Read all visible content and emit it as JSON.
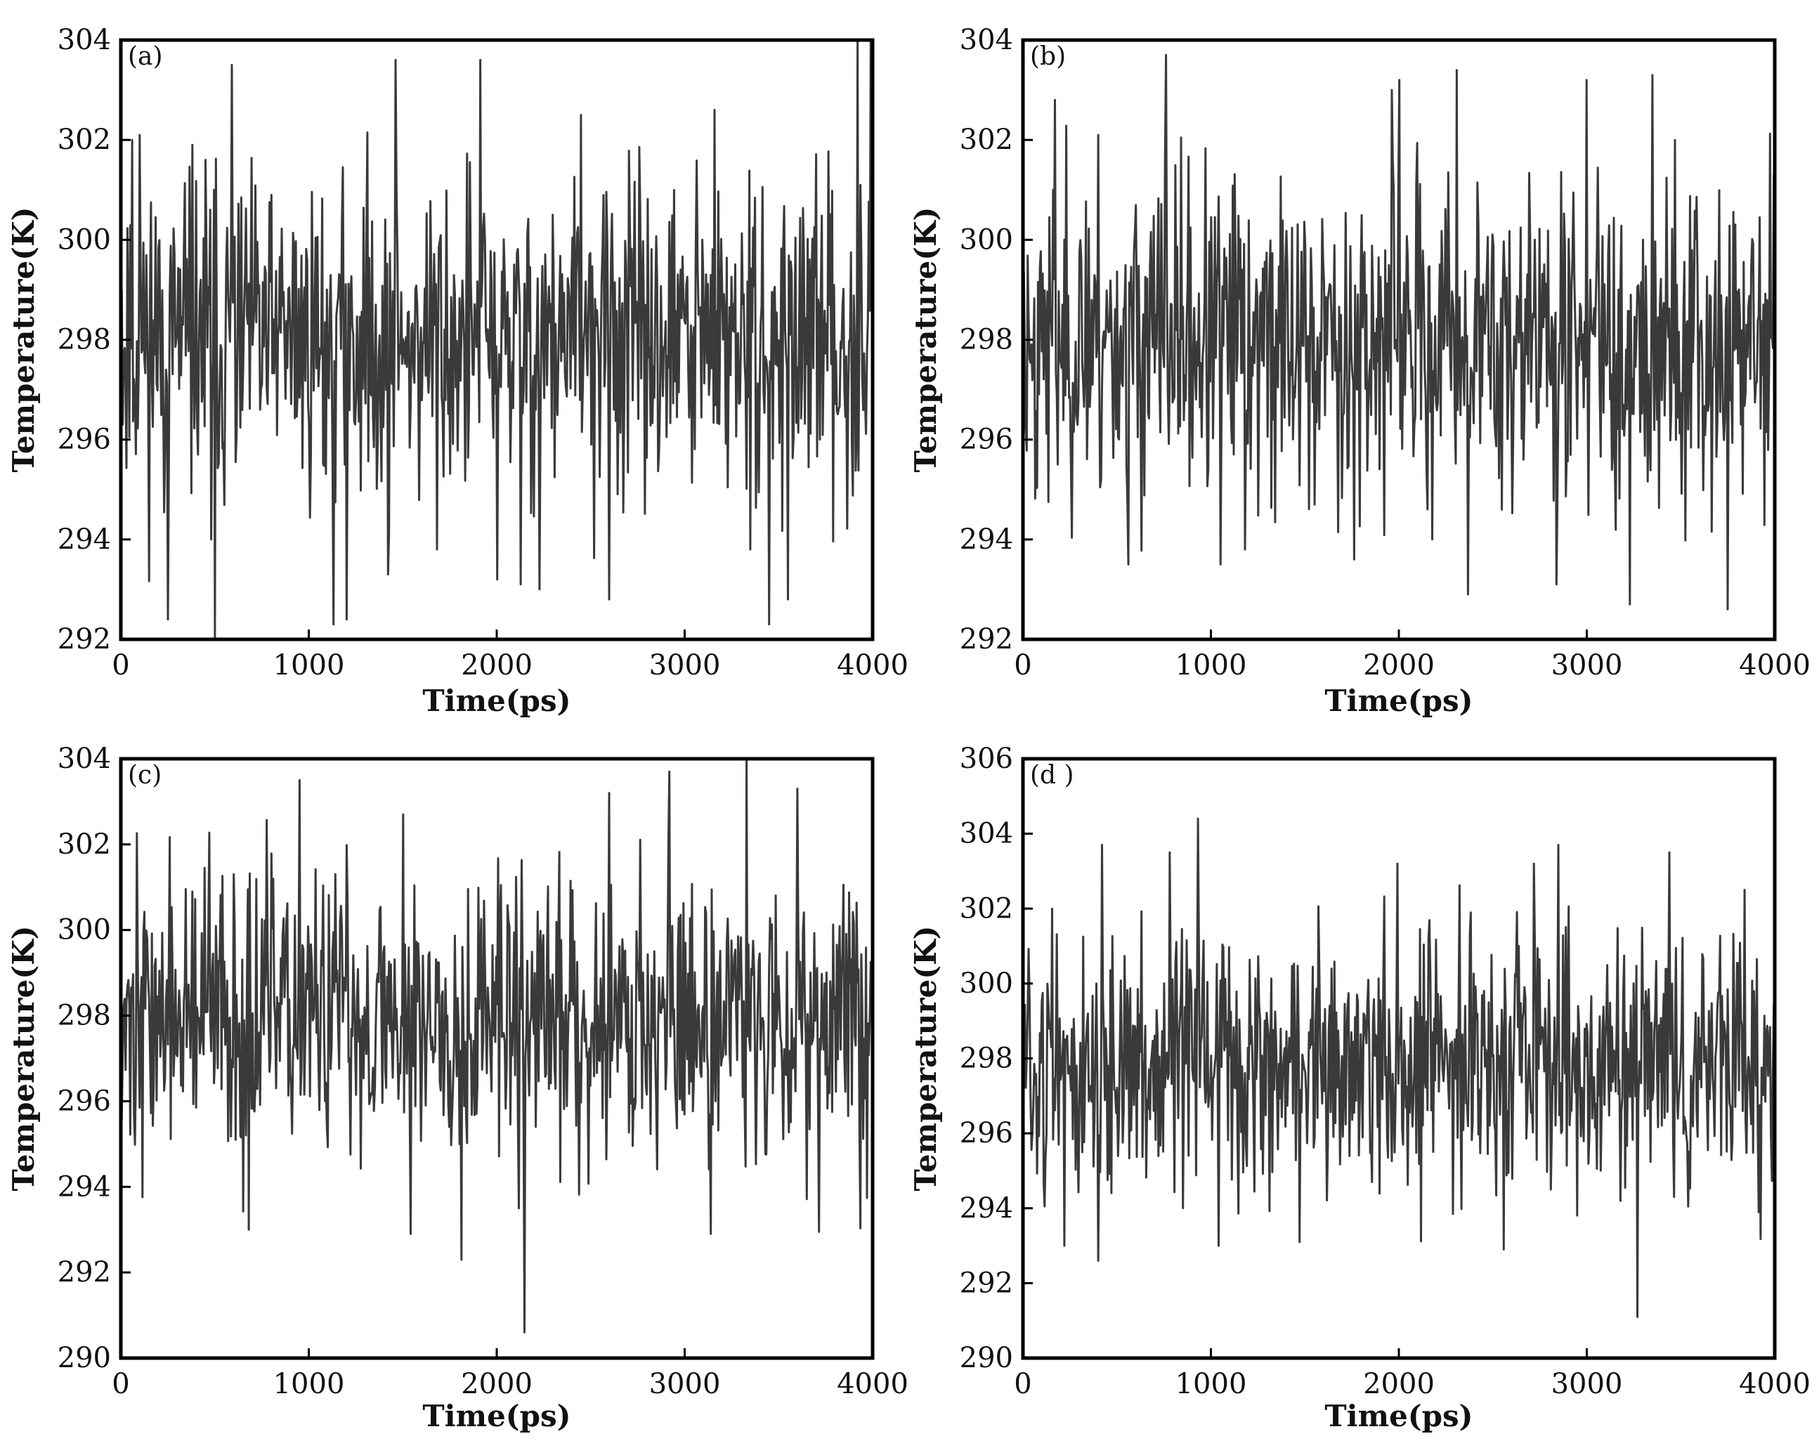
{
  "figure": {
    "line_color": "#3a3a3a",
    "frame_color": "#000000",
    "background": "#ffffff"
  },
  "chart_data": [
    {
      "type": "line",
      "panel_label": "(a)",
      "xlabel": "Time(ps)",
      "ylabel": "Temperature(K)",
      "xlim": [
        0,
        4000
      ],
      "ylim": [
        292,
        304
      ],
      "xticks": [
        "0",
        "1000",
        "2000",
        "3000",
        "4000"
      ],
      "yticks": [
        "292",
        "294",
        "296",
        "298",
        "300",
        "302",
        "304"
      ],
      "grid": false,
      "series": [
        {
          "n_points": 800,
          "mean": 298.0,
          "amplitude": 1.6,
          "seed": 11,
          "spikes": [
            {
              "x": 60,
              "y": 302.0
            },
            {
              "x": 100,
              "y": 302.1
            },
            {
              "x": 250,
              "y": 292.4
            },
            {
              "x": 380,
              "y": 301.9
            },
            {
              "x": 480,
              "y": 294.0
            },
            {
              "x": 500,
              "y": 292.0
            },
            {
              "x": 590,
              "y": 303.5
            },
            {
              "x": 1130,
              "y": 292.3
            },
            {
              "x": 1200,
              "y": 292.4
            },
            {
              "x": 1420,
              "y": 293.3
            },
            {
              "x": 1460,
              "y": 303.6
            },
            {
              "x": 1680,
              "y": 293.8
            },
            {
              "x": 1910,
              "y": 303.6
            },
            {
              "x": 2000,
              "y": 293.2
            },
            {
              "x": 2130,
              "y": 293.1
            },
            {
              "x": 2230,
              "y": 293.0
            },
            {
              "x": 2450,
              "y": 302.5
            },
            {
              "x": 2600,
              "y": 292.8
            },
            {
              "x": 3160,
              "y": 302.6
            },
            {
              "x": 3350,
              "y": 293.8
            },
            {
              "x": 3450,
              "y": 292.3
            },
            {
              "x": 3550,
              "y": 292.8
            },
            {
              "x": 3920,
              "y": 304.0
            },
            {
              "x": 3990,
              "y": 304.0
            }
          ]
        }
      ]
    },
    {
      "type": "line",
      "panel_label": "(b)",
      "xlabel": "Time(ps)",
      "ylabel": "Temperature(K)",
      "xlim": [
        0,
        4000
      ],
      "ylim": [
        292,
        304
      ],
      "xticks": [
        "0",
        "1000",
        "2000",
        "3000",
        "4000"
      ],
      "yticks": [
        "292",
        "294",
        "296",
        "298",
        "300",
        "302",
        "304"
      ],
      "grid": false,
      "series": [
        {
          "n_points": 800,
          "mean": 298.0,
          "amplitude": 1.6,
          "seed": 23,
          "spikes": [
            {
              "x": 170,
              "y": 302.8
            },
            {
              "x": 400,
              "y": 302.1
            },
            {
              "x": 560,
              "y": 293.5
            },
            {
              "x": 760,
              "y": 303.7
            },
            {
              "x": 1050,
              "y": 293.5
            },
            {
              "x": 1180,
              "y": 293.8
            },
            {
              "x": 1550,
              "y": 294.7
            },
            {
              "x": 1760,
              "y": 293.6
            },
            {
              "x": 1960,
              "y": 303.0
            },
            {
              "x": 2000,
              "y": 303.2
            },
            {
              "x": 2180,
              "y": 294.0
            },
            {
              "x": 2310,
              "y": 303.4
            },
            {
              "x": 2370,
              "y": 292.9
            },
            {
              "x": 2840,
              "y": 293.1
            },
            {
              "x": 3000,
              "y": 303.2
            },
            {
              "x": 3230,
              "y": 292.7
            },
            {
              "x": 3350,
              "y": 303.3
            },
            {
              "x": 3750,
              "y": 292.6
            }
          ]
        }
      ]
    },
    {
      "type": "line",
      "panel_label": "(c)",
      "xlabel": "Time(ps)",
      "ylabel": "Temperature(K)",
      "xlim": [
        0,
        4000
      ],
      "ylim": [
        290,
        304
      ],
      "xticks": [
        "0",
        "1000",
        "2000",
        "3000",
        "4000"
      ],
      "yticks": [
        "290",
        "292",
        "294",
        "296",
        "298",
        "300",
        "302",
        "304"
      ],
      "grid": false,
      "series": [
        {
          "n_points": 800,
          "mean": 298.0,
          "amplitude": 1.7,
          "seed": 37,
          "spikes": [
            {
              "x": 680,
              "y": 293.0
            },
            {
              "x": 950,
              "y": 303.5
            },
            {
              "x": 1500,
              "y": 302.7
            },
            {
              "x": 1540,
              "y": 292.9
            },
            {
              "x": 1810,
              "y": 292.3
            },
            {
              "x": 2120,
              "y": 293.5
            },
            {
              "x": 2150,
              "y": 290.6
            },
            {
              "x": 2600,
              "y": 303.2
            },
            {
              "x": 2920,
              "y": 303.7
            },
            {
              "x": 3140,
              "y": 292.9
            },
            {
              "x": 3330,
              "y": 304.0
            },
            {
              "x": 3600,
              "y": 303.3
            }
          ]
        }
      ]
    },
    {
      "type": "line",
      "panel_label": "(d )",
      "xlabel": "Time(ps)",
      "ylabel": "Temperature(K)",
      "xlim": [
        0,
        4000
      ],
      "ylim": [
        290,
        306
      ],
      "xticks": [
        "0",
        "1000",
        "2000",
        "3000",
        "4000"
      ],
      "yticks": [
        "290",
        "292",
        "294",
        "296",
        "298",
        "300",
        "302",
        "304",
        "306"
      ],
      "grid": false,
      "series": [
        {
          "n_points": 800,
          "mean": 297.8,
          "amplitude": 1.7,
          "seed": 51,
          "spikes": [
            {
              "x": 220,
              "y": 293.0
            },
            {
              "x": 400,
              "y": 292.6
            },
            {
              "x": 420,
              "y": 303.7
            },
            {
              "x": 780,
              "y": 303.5
            },
            {
              "x": 930,
              "y": 304.4
            },
            {
              "x": 1040,
              "y": 293.0
            },
            {
              "x": 1470,
              "y": 293.1
            },
            {
              "x": 1990,
              "y": 303.2
            },
            {
              "x": 2560,
              "y": 292.9
            },
            {
              "x": 2720,
              "y": 303.2
            },
            {
              "x": 2850,
              "y": 303.7
            },
            {
              "x": 3270,
              "y": 291.1
            },
            {
              "x": 3440,
              "y": 303.5
            },
            {
              "x": 3840,
              "y": 302.5
            }
          ]
        }
      ]
    }
  ]
}
